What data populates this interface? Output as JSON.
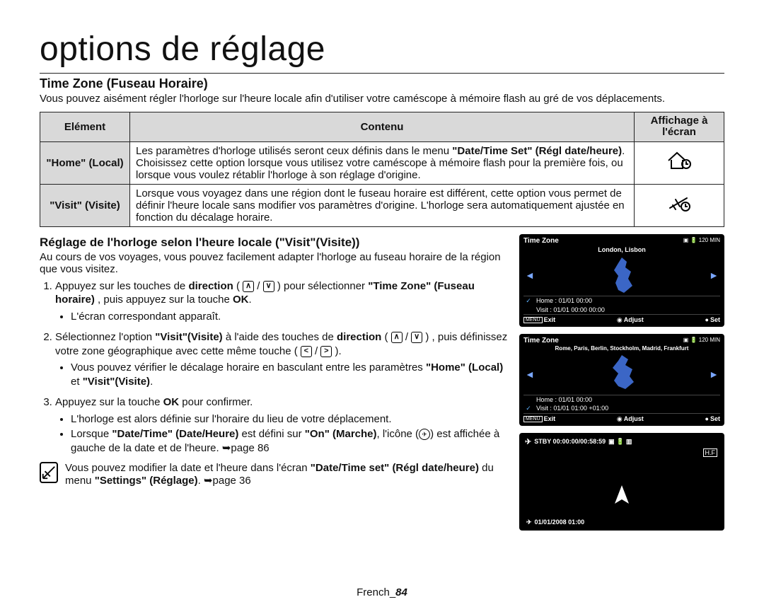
{
  "page_title": "options de réglage",
  "section_title": "Time Zone (Fuseau Horaire)",
  "intro": "Vous pouvez aisément régler l'horloge sur l'heure locale afin d'utiliser votre caméscope à mémoire flash au gré de vos déplacements.",
  "table": {
    "headers": [
      "Elément",
      "Contenu",
      "Affichage à l'écran"
    ],
    "rows": [
      {
        "element": "\"Home\" (Local)",
        "content_html": "Les paramètres d'horloge utilisés seront ceux définis dans le menu <b>\"Date/Time Set\" (Régl date/heure)</b>. Choisissez cette option lorsque vous utilisez votre caméscope à mémoire flash pour la première fois, ou lorsque vous voulez rétablir l'horloge à son réglage d'origine.",
        "icon": "home"
      },
      {
        "element": "\"Visit\" (Visite)",
        "content_html": "Lorsque vous voyagez dans une région dont le fuseau horaire est différent, cette option vous permet de définir l'heure locale sans modifier vos paramètres d'origine. L'horloge sera automatiquement ajustée en fonction du décalage horaire.",
        "icon": "plane"
      }
    ]
  },
  "section2_title": "Réglage de l'horloge selon l'heure locale (\"Visit\"(Visite))",
  "section2_intro": "Au cours de vos voyages, vous pouvez facilement adapter l'horloge au fuseau horaire de la région que vous visitez.",
  "steps": [
    {
      "text_html": "Appuyez sur les touches de <b>direction</b> ( <span class='dirbtn'>∧</span> / <span class='dirbtn'>∨</span> ) pour sélectionner <b>\"Time Zone\" (Fuseau horaire)</b> , puis appuyez sur la touche <b>OK</b>.",
      "sub": [
        "L'écran correspondant apparaît."
      ]
    },
    {
      "text_html": "Sélectionnez l'option <b>\"Visit\"(Visite)</b> à l'aide des touches de <b>direction</b> ( <span class='dirbtn'>∧</span> / <span class='dirbtn'>∨</span> ) , puis définissez votre zone géographique avec cette même touche ( <span class='dirbtn'>&lt;</span> / <span class='dirbtn'>&gt;</span> ).",
      "sub": [
        "Vous pouvez vérifier le décalage horaire en basculant entre les paramètres <b>\"Home\" (Local)</b> et <b>\"Visit\"(Visite)</b>."
      ]
    },
    {
      "text_html": "Appuyez sur la touche <b>OK</b> pour confirmer.",
      "sub": [
        "L'horloge est alors définie sur l'horaire du lieu de votre déplacement.",
        "Lorsque <b>\"Date/Time\" (Date/Heure)</b> est défini sur <b>\"On\" (Marche)</b>, l'icône (<span class='small-plane'>✈</span>) est affichée à gauche de la date et de l'heure. ➥page 86"
      ]
    }
  ],
  "note_html": "Vous pouvez modifier la date et l'heure dans l'écran <b>\"Date/Time set\" (Régl date/heure)</b> du menu <b>\"Settings\" (Réglage)</b>. ➥page 36",
  "screens": {
    "a": {
      "title": "Time Zone",
      "top_icons": "▣ 🔋 120 MIN",
      "city": "London, Lisbon",
      "map_fill": "#3b66c6",
      "home_checked": true,
      "visit_checked": false,
      "home": "Home : 01/01  00:00",
      "visit": "Visit : 01/01  00:00  00:00",
      "footer": {
        "exit": "Exit",
        "adjust": "Adjust",
        "set": "Set",
        "menu_label": "MENU"
      }
    },
    "b": {
      "title": "Time Zone",
      "top_icons": "▣ 🔋 120 MIN",
      "city": "Rome, Paris, Berlin, Stockholm, Madrid, Frankfurt",
      "map_fill": "#3b66c6",
      "home_checked": false,
      "visit_checked": true,
      "home": "Home : 01/01  00:00",
      "visit": "Visit : 01/01  01:00  +01:00",
      "footer": {
        "exit": "Exit",
        "adjust": "Adjust",
        "set": "Set",
        "menu_label": "MENU"
      }
    },
    "status": {
      "stby": "STBY 00:00:00/00:58:59",
      "icons_right": "▣ 🔋 ▥",
      "hf": "H.F",
      "datetime": "01/01/2008 01:00"
    }
  },
  "footer_lang": "French",
  "footer_num": "84"
}
